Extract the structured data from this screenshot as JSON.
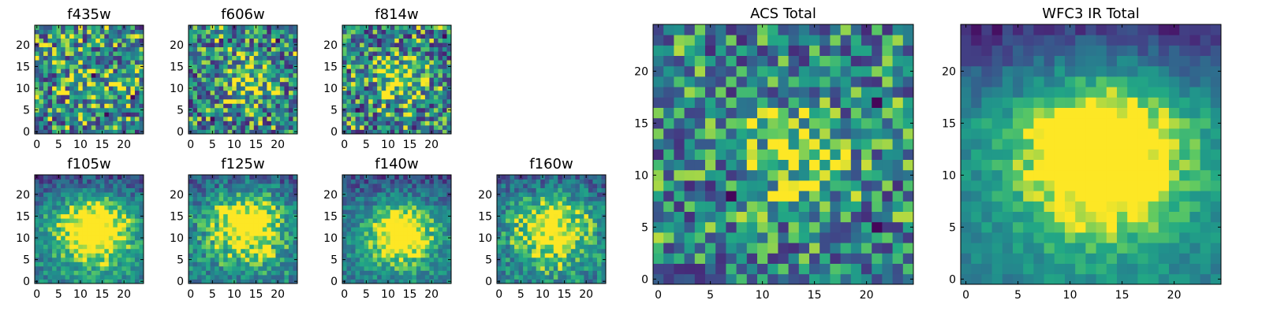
{
  "chart_data": [
    {
      "type": "heatmap",
      "title": "f435w",
      "grid": 25,
      "seed": 11,
      "peak": [
        13,
        11
      ],
      "sigma": 6,
      "amp": 0.15,
      "noise": 0.45,
      "hole": [
        [
          13,
          13
        ],
        [
          16,
          4
        ],
        [
          22,
          8
        ]
      ],
      "xticks": [
        0,
        5,
        10,
        15,
        20
      ],
      "yticks": [
        0,
        5,
        10,
        15,
        20
      ],
      "xlim": [
        -0.5,
        24.5
      ],
      "ylim": [
        -0.5,
        24.5
      ],
      "colormap": "viridis"
    },
    {
      "type": "heatmap",
      "title": "f606w",
      "grid": 25,
      "seed": 23,
      "peak": [
        13,
        12
      ],
      "sigma": 4,
      "amp": 0.35,
      "noise": 0.45,
      "hole": [
        [
          5,
          3
        ],
        [
          20,
          21
        ]
      ],
      "xticks": [
        0,
        5,
        10,
        15,
        20
      ],
      "yticks": [
        0,
        5,
        10,
        15,
        20
      ],
      "xlim": [
        -0.5,
        24.5
      ],
      "ylim": [
        -0.5,
        24.5
      ],
      "colormap": "viridis"
    },
    {
      "type": "heatmap",
      "title": "f814w",
      "grid": 25,
      "seed": 37,
      "peak": [
        13,
        12
      ],
      "sigma": 3.5,
      "amp": 0.45,
      "noise": 0.45,
      "hole": [
        [
          3,
          5
        ],
        [
          23,
          22
        ]
      ],
      "xticks": [
        0,
        5,
        10,
        15,
        20
      ],
      "yticks": [
        0,
        5,
        10,
        15,
        20
      ],
      "xlim": [
        -0.5,
        24.5
      ],
      "ylim": [
        -0.5,
        24.5
      ],
      "colormap": "viridis"
    },
    {
      "type": "heatmap",
      "title": "f105w",
      "grid": 25,
      "seed": 41,
      "peak": [
        13,
        12
      ],
      "sigma": 6,
      "amp": 0.7,
      "noise": 0.2,
      "gradient": 0.35,
      "xticks": [
        0,
        5,
        10,
        15,
        20
      ],
      "yticks": [
        0,
        5,
        10,
        15,
        20
      ],
      "xlim": [
        -0.5,
        24.5
      ],
      "ylim": [
        -0.5,
        24.5
      ],
      "colormap": "viridis"
    },
    {
      "type": "heatmap",
      "title": "f125w",
      "grid": 25,
      "seed": 53,
      "peak": [
        13,
        13
      ],
      "sigma": 6,
      "amp": 0.65,
      "noise": 0.25,
      "gradient": 0.25,
      "xticks": [
        0,
        5,
        10,
        15,
        20
      ],
      "yticks": [
        0,
        5,
        10,
        15,
        20
      ],
      "xlim": [
        -0.5,
        24.5
      ],
      "ylim": [
        -0.5,
        24.5
      ],
      "colormap": "viridis"
    },
    {
      "type": "heatmap",
      "title": "f140w",
      "grid": 25,
      "seed": 67,
      "peak": [
        13,
        11
      ],
      "sigma": 5,
      "amp": 0.7,
      "noise": 0.2,
      "gradient": 0.3,
      "xticks": [
        0,
        5,
        10,
        15,
        20
      ],
      "yticks": [
        0,
        5,
        10,
        15,
        20
      ],
      "xlim": [
        -0.5,
        24.5
      ],
      "ylim": [
        -0.5,
        24.5
      ],
      "colormap": "viridis"
    },
    {
      "type": "heatmap",
      "title": "f160w",
      "grid": 25,
      "seed": 79,
      "peak": [
        12,
        12
      ],
      "sigma": 6,
      "amp": 0.6,
      "noise": 0.25,
      "gradient": 0.25,
      "xticks": [
        0,
        5,
        10,
        15,
        20
      ],
      "yticks": [
        0,
        5,
        10,
        15,
        20
      ],
      "xlim": [
        -0.5,
        24.5
      ],
      "ylim": [
        -0.5,
        24.5
      ],
      "colormap": "viridis"
    },
    {
      "type": "heatmap",
      "title": "ACS Total",
      "grid": 25,
      "seed": 97,
      "peak": [
        13,
        12
      ],
      "sigma": 3,
      "amp": 0.4,
      "noise": 0.4,
      "hole": [
        [
          7,
          8
        ],
        [
          21,
          17
        ],
        [
          21,
          5
        ]
      ],
      "xticks": [
        0,
        5,
        10,
        15,
        20
      ],
      "yticks": [
        0,
        5,
        10,
        15,
        20
      ],
      "xlim": [
        -0.5,
        24.5
      ],
      "ylim": [
        -0.5,
        24.5
      ],
      "colormap": "viridis"
    },
    {
      "type": "heatmap",
      "title": "WFC3 IR Total",
      "grid": 25,
      "seed": 109,
      "peak": [
        13,
        12
      ],
      "sigma": 6,
      "amp": 0.75,
      "noise": 0.12,
      "gradient": 0.45,
      "xticks": [
        0,
        5,
        10,
        15,
        20
      ],
      "yticks": [
        0,
        5,
        10,
        15,
        20
      ],
      "xlim": [
        -0.5,
        24.5
      ],
      "ylim": [
        -0.5,
        24.5
      ],
      "colormap": "viridis"
    }
  ]
}
